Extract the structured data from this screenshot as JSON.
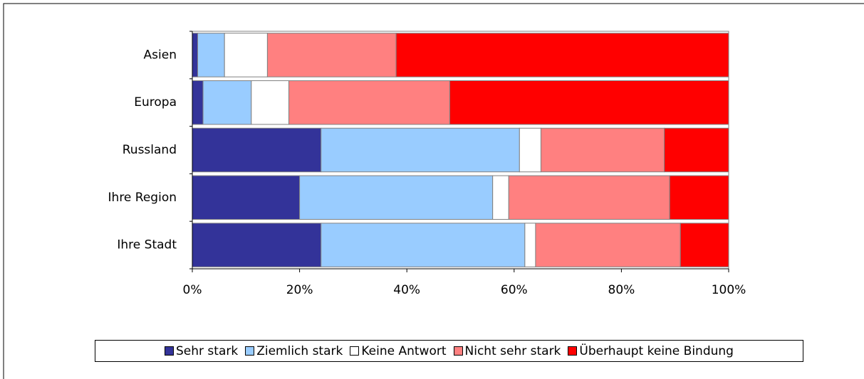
{
  "chart_data": {
    "type": "stacked-barh",
    "categories": [
      "Asien",
      "Europa",
      "Russland",
      "Ihre Region",
      "Ihre Stadt"
    ],
    "series": [
      {
        "name": "Sehr stark",
        "color": "#333399",
        "values": [
          1,
          2,
          24,
          20,
          24
        ]
      },
      {
        "name": "Ziemlich stark",
        "color": "#99ccff",
        "values": [
          5,
          9,
          37,
          36,
          38
        ]
      },
      {
        "name": "Keine Antwort",
        "color": "#ffffff",
        "values": [
          8,
          7,
          4,
          3,
          2
        ]
      },
      {
        "name": "Nicht sehr stark",
        "color": "#ff8080",
        "values": [
          24,
          30,
          23,
          30,
          27
        ]
      },
      {
        "name": "Überhaupt keine Bindung",
        "color": "#ff0000",
        "values": [
          62,
          52,
          12,
          11,
          9
        ]
      }
    ],
    "xlim": [
      0,
      100
    ],
    "xticks": [
      {
        "value": 0,
        "label": "0%"
      },
      {
        "value": 20,
        "label": "20%"
      },
      {
        "value": 40,
        "label": "40%"
      },
      {
        "value": 60,
        "label": "60%"
      },
      {
        "value": 80,
        "label": "80%"
      },
      {
        "value": 100,
        "label": "100%"
      }
    ],
    "legend": "bottom"
  }
}
